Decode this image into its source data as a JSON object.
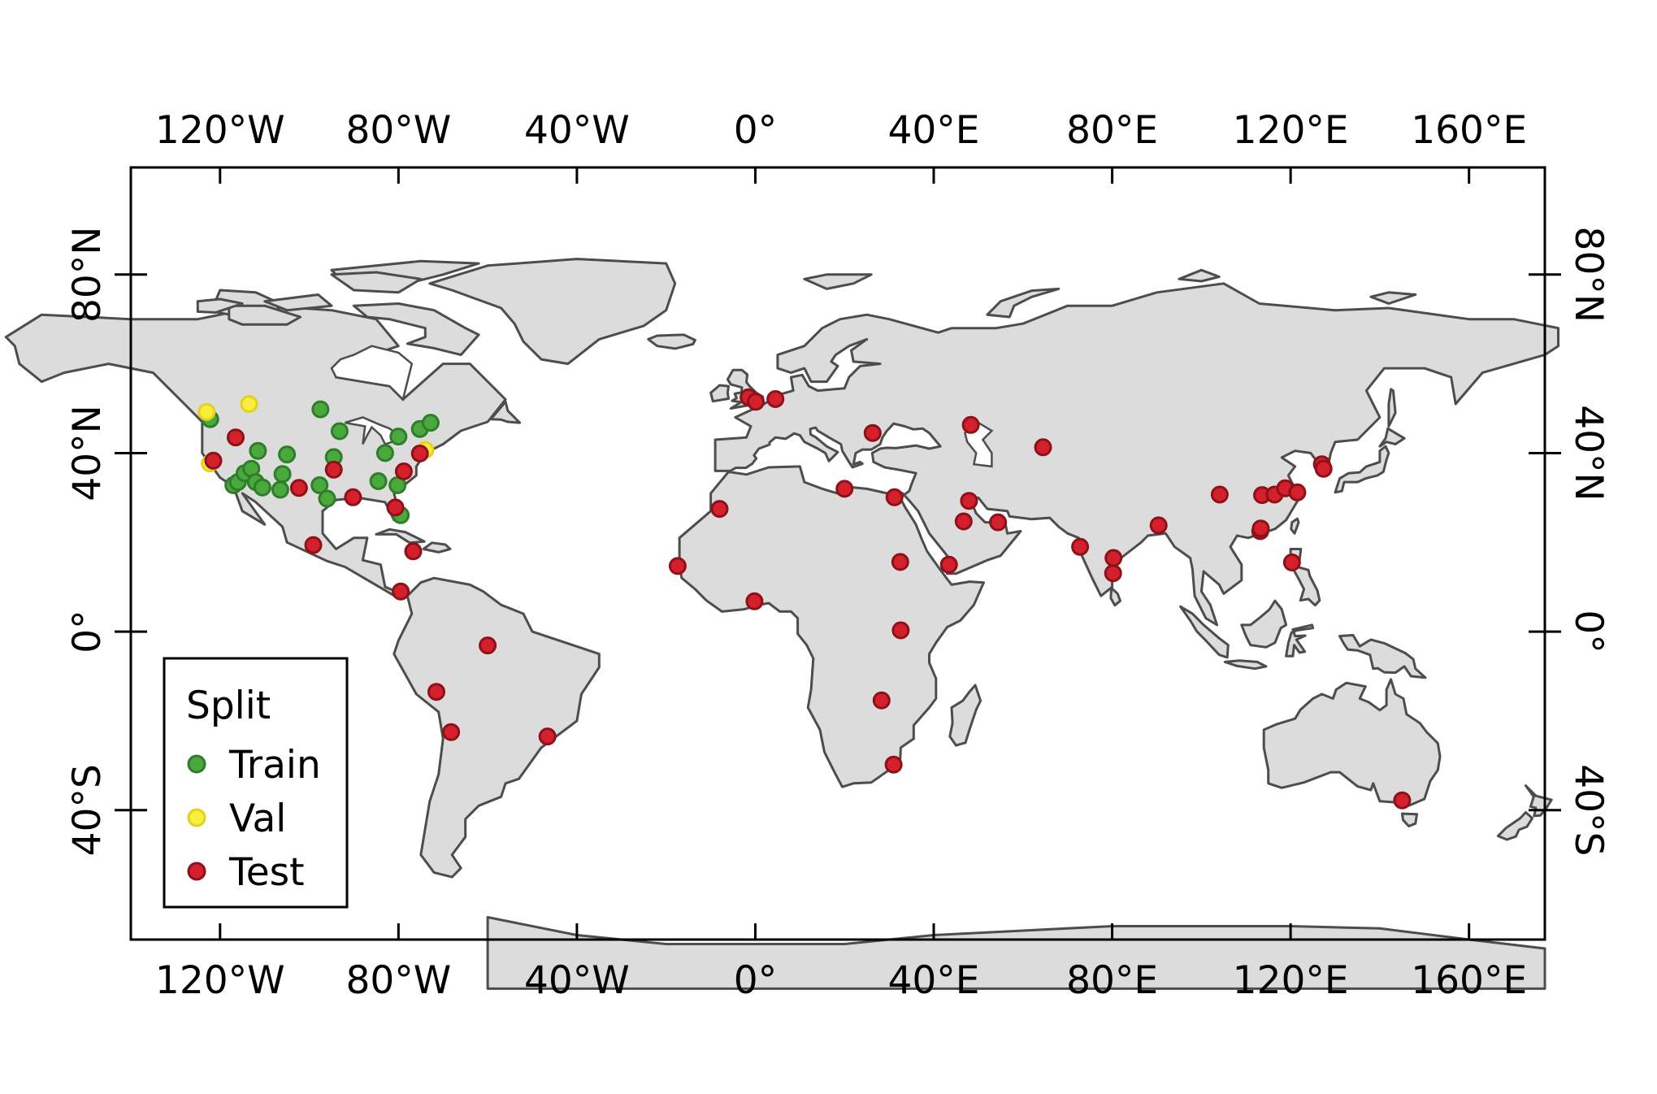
{
  "map": {
    "projection": "equirectangular",
    "extent": {
      "lon": [
        -140,
        177
      ],
      "lat": [
        -69,
        104
      ]
    },
    "top_axis_ticks": [
      {
        "value": -120,
        "label": "120°W"
      },
      {
        "value": -80,
        "label": "80°W"
      },
      {
        "value": -40,
        "label": "40°W"
      },
      {
        "value": 0,
        "label": "0°"
      },
      {
        "value": 40,
        "label": "40°E"
      },
      {
        "value": 80,
        "label": "80°E"
      },
      {
        "value": 120,
        "label": "120°E"
      },
      {
        "value": 160,
        "label": "160°E"
      }
    ],
    "bottom_axis_ticks": [
      {
        "value": -120,
        "label": "120°W"
      },
      {
        "value": -80,
        "label": "80°W"
      },
      {
        "value": -40,
        "label": "40°W"
      },
      {
        "value": 0,
        "label": "0°"
      },
      {
        "value": 40,
        "label": "40°E"
      },
      {
        "value": 80,
        "label": "80°E"
      },
      {
        "value": 120,
        "label": "120°E"
      },
      {
        "value": 160,
        "label": "160°E"
      }
    ],
    "left_axis_ticks": [
      {
        "value": 80,
        "label": "80°N"
      },
      {
        "value": 40,
        "label": "40°N"
      },
      {
        "value": 0,
        "label": "0°"
      },
      {
        "value": -40,
        "label": "40°S"
      }
    ],
    "right_axis_ticks": [
      {
        "value": 80,
        "label": "80°N"
      },
      {
        "value": 40,
        "label": "40°N"
      },
      {
        "value": 0,
        "label": "0°"
      },
      {
        "value": -40,
        "label": "40°S"
      }
    ],
    "colors": {
      "land": "#dcdcdc",
      "coastline": "#4d4d4d",
      "ocean": "#ffffff",
      "frame": "#000000"
    },
    "legend": {
      "title": "Split",
      "placement": "bottom-left",
      "items": [
        {
          "label": "Train",
          "fill": "#4aa93c",
          "stroke": "#2f7d2a"
        },
        {
          "label": "Val",
          "fill": "#f8ee3b",
          "stroke": "#e2d21e"
        },
        {
          "label": "Test",
          "fill": "#d4202c",
          "stroke": "#8e1117"
        }
      ]
    }
  },
  "chart_data": {
    "type": "scatter",
    "title": "",
    "xlabel": "",
    "ylabel": "",
    "xlim": [
      -140,
      177
    ],
    "ylim": [
      -69,
      104
    ],
    "grid": false,
    "legend_placement": "bottom-left",
    "series": [
      {
        "name": "Train",
        "points": [
          [
            -122.2,
            47.6
          ],
          [
            -117,
            32.8
          ],
          [
            -116,
            33.5
          ],
          [
            -114.5,
            35.5
          ],
          [
            -113,
            36.5
          ],
          [
            -111.5,
            40.5
          ],
          [
            -112,
            33.5
          ],
          [
            -110.5,
            32.3
          ],
          [
            -105,
            39.7
          ],
          [
            -106,
            35.3
          ],
          [
            -106.5,
            31.8
          ],
          [
            -97.5,
            49.8
          ],
          [
            -97.7,
            32.8
          ],
          [
            -96,
            29.8
          ],
          [
            -94.5,
            39.1
          ],
          [
            -93.2,
            44.9
          ],
          [
            -84.5,
            33.7
          ],
          [
            -83,
            40
          ],
          [
            -80,
            43.7
          ],
          [
            -80.2,
            32.8
          ],
          [
            -79.5,
            26.1
          ],
          [
            -75.2,
            45.4
          ],
          [
            -72.8,
            46.8
          ]
        ]
      },
      {
        "name": "Val",
        "points": [
          [
            -123,
            49.2
          ],
          [
            -113.5,
            51
          ],
          [
            -122.3,
            37.7
          ],
          [
            -74,
            40.7
          ]
        ]
      },
      {
        "name": "Test",
        "points": [
          [
            -121.5,
            38.3
          ],
          [
            -116.5,
            43.5
          ],
          [
            -102.3,
            32.2
          ],
          [
            -94.5,
            36.3
          ],
          [
            -90.2,
            30.1
          ],
          [
            -99.1,
            19.4
          ],
          [
            -79.5,
            9
          ],
          [
            -76.7,
            18
          ],
          [
            -80.7,
            27.8
          ],
          [
            -78.8,
            35.9
          ],
          [
            -75.2,
            39.9
          ],
          [
            -60,
            -3.1
          ],
          [
            -71.5,
            -13.5
          ],
          [
            -68.2,
            -22.5
          ],
          [
            -46.6,
            -23.5
          ],
          [
            -17.4,
            14.7
          ],
          [
            -8,
            27.5
          ],
          [
            -0.2,
            6.8
          ],
          [
            -1.5,
            52.5
          ],
          [
            0.1,
            51.5
          ],
          [
            4.5,
            52.1
          ],
          [
            20,
            32
          ],
          [
            26.3,
            44.5
          ],
          [
            31.2,
            30.1
          ],
          [
            32.5,
            15.6
          ],
          [
            32.6,
            0.3
          ],
          [
            28.3,
            -15.4
          ],
          [
            31,
            -29.8
          ],
          [
            43.4,
            15
          ],
          [
            46.7,
            24.7
          ],
          [
            47.9,
            29.3
          ],
          [
            48.3,
            46.3
          ],
          [
            54.4,
            24.5
          ],
          [
            64.5,
            41.3
          ],
          [
            72.8,
            19
          ],
          [
            80.2,
            13.1
          ],
          [
            80.3,
            16.5
          ],
          [
            90.4,
            23.8
          ],
          [
            104.1,
            30.7
          ],
          [
            113.2,
            22.5
          ],
          [
            113.3,
            23.1
          ],
          [
            113.6,
            30.6
          ],
          [
            116.4,
            30.7
          ],
          [
            118.8,
            32.1
          ],
          [
            121.5,
            31.2
          ],
          [
            127,
            37.5
          ],
          [
            127.4,
            36.5
          ],
          [
            120.3,
            15.5
          ],
          [
            145,
            -37.8
          ]
        ]
      }
    ]
  }
}
